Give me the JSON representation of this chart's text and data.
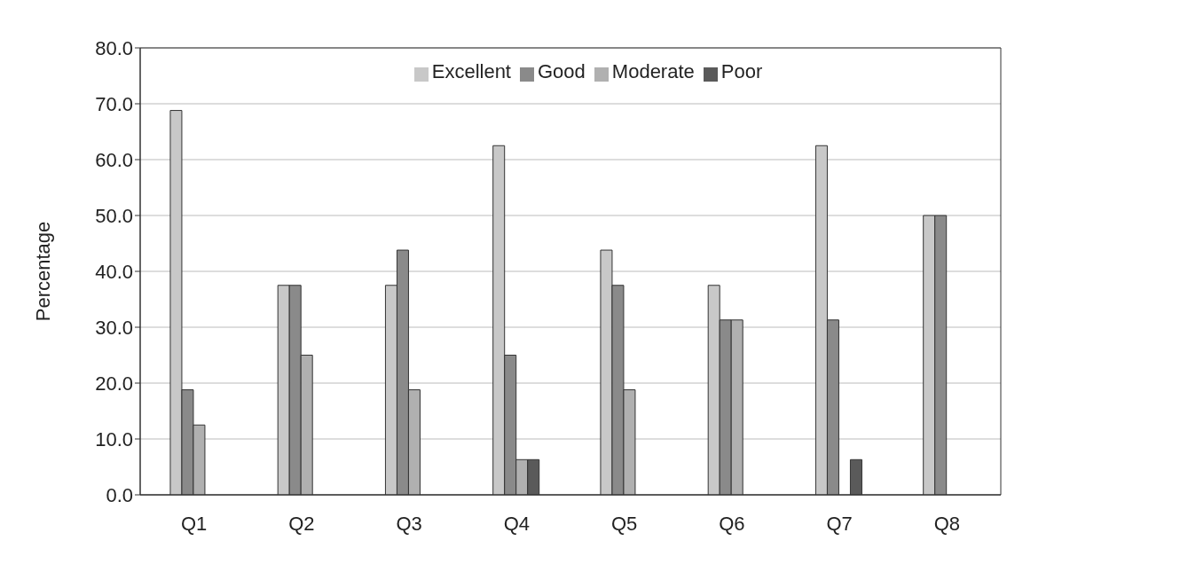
{
  "chart_data": {
    "type": "bar",
    "ylabel": "Percentage",
    "categories": [
      "Q1",
      "Q2",
      "Q3",
      "Q4",
      "Q5",
      "Q6",
      "Q7",
      "Q8"
    ],
    "series": [
      {
        "name": "Excellent",
        "color": "#c8c8c8",
        "values": [
          68.8,
          37.5,
          37.5,
          62.5,
          43.8,
          37.5,
          62.5,
          50.0
        ]
      },
      {
        "name": "Good",
        "color": "#8a8a8a",
        "values": [
          18.8,
          37.5,
          43.8,
          25.0,
          37.5,
          31.3,
          31.3,
          50.0
        ]
      },
      {
        "name": "Moderate",
        "color": "#b0b0b0",
        "values": [
          12.5,
          25.0,
          18.8,
          6.3,
          18.8,
          31.3,
          0.0,
          0.0
        ]
      },
      {
        "name": "Poor",
        "color": "#5a5a5a",
        "values": [
          0.0,
          0.0,
          0.0,
          6.3,
          0.0,
          0.0,
          6.3,
          0.0
        ]
      }
    ],
    "ylim": [
      0,
      80
    ],
    "yticks": [
      {
        "value": 0,
        "label": "0.0"
      },
      {
        "value": 10,
        "label": "10.0"
      },
      {
        "value": 20,
        "label": "20.0"
      },
      {
        "value": 30,
        "label": "30.0"
      },
      {
        "value": 40,
        "label": "40.0"
      },
      {
        "value": 50,
        "label": "50.0"
      },
      {
        "value": 60,
        "label": "60.0"
      },
      {
        "value": 70,
        "label": "70.0"
      },
      {
        "value": 80,
        "label": "80.0"
      }
    ],
    "grid": "y",
    "legend": "top"
  }
}
